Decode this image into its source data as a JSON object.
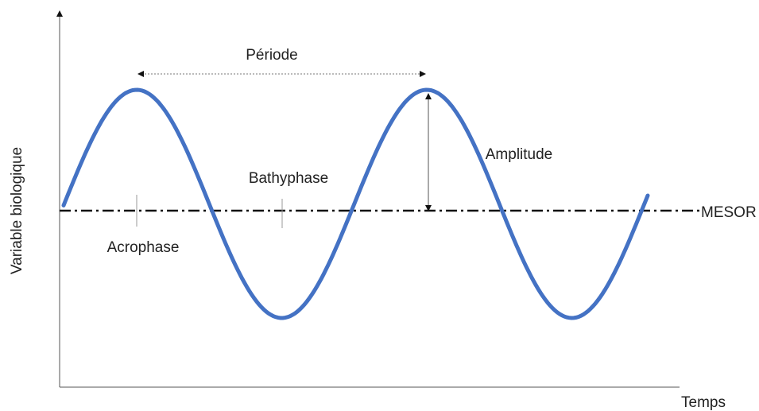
{
  "axes": {
    "y_label": "Variable biologique",
    "x_label": "Temps"
  },
  "labels": {
    "period": "Période",
    "bathyphase": "Bathyphase",
    "amplitude": "Amplitude",
    "acrophase": "Acrophase",
    "mesor": "MESOR"
  }
}
